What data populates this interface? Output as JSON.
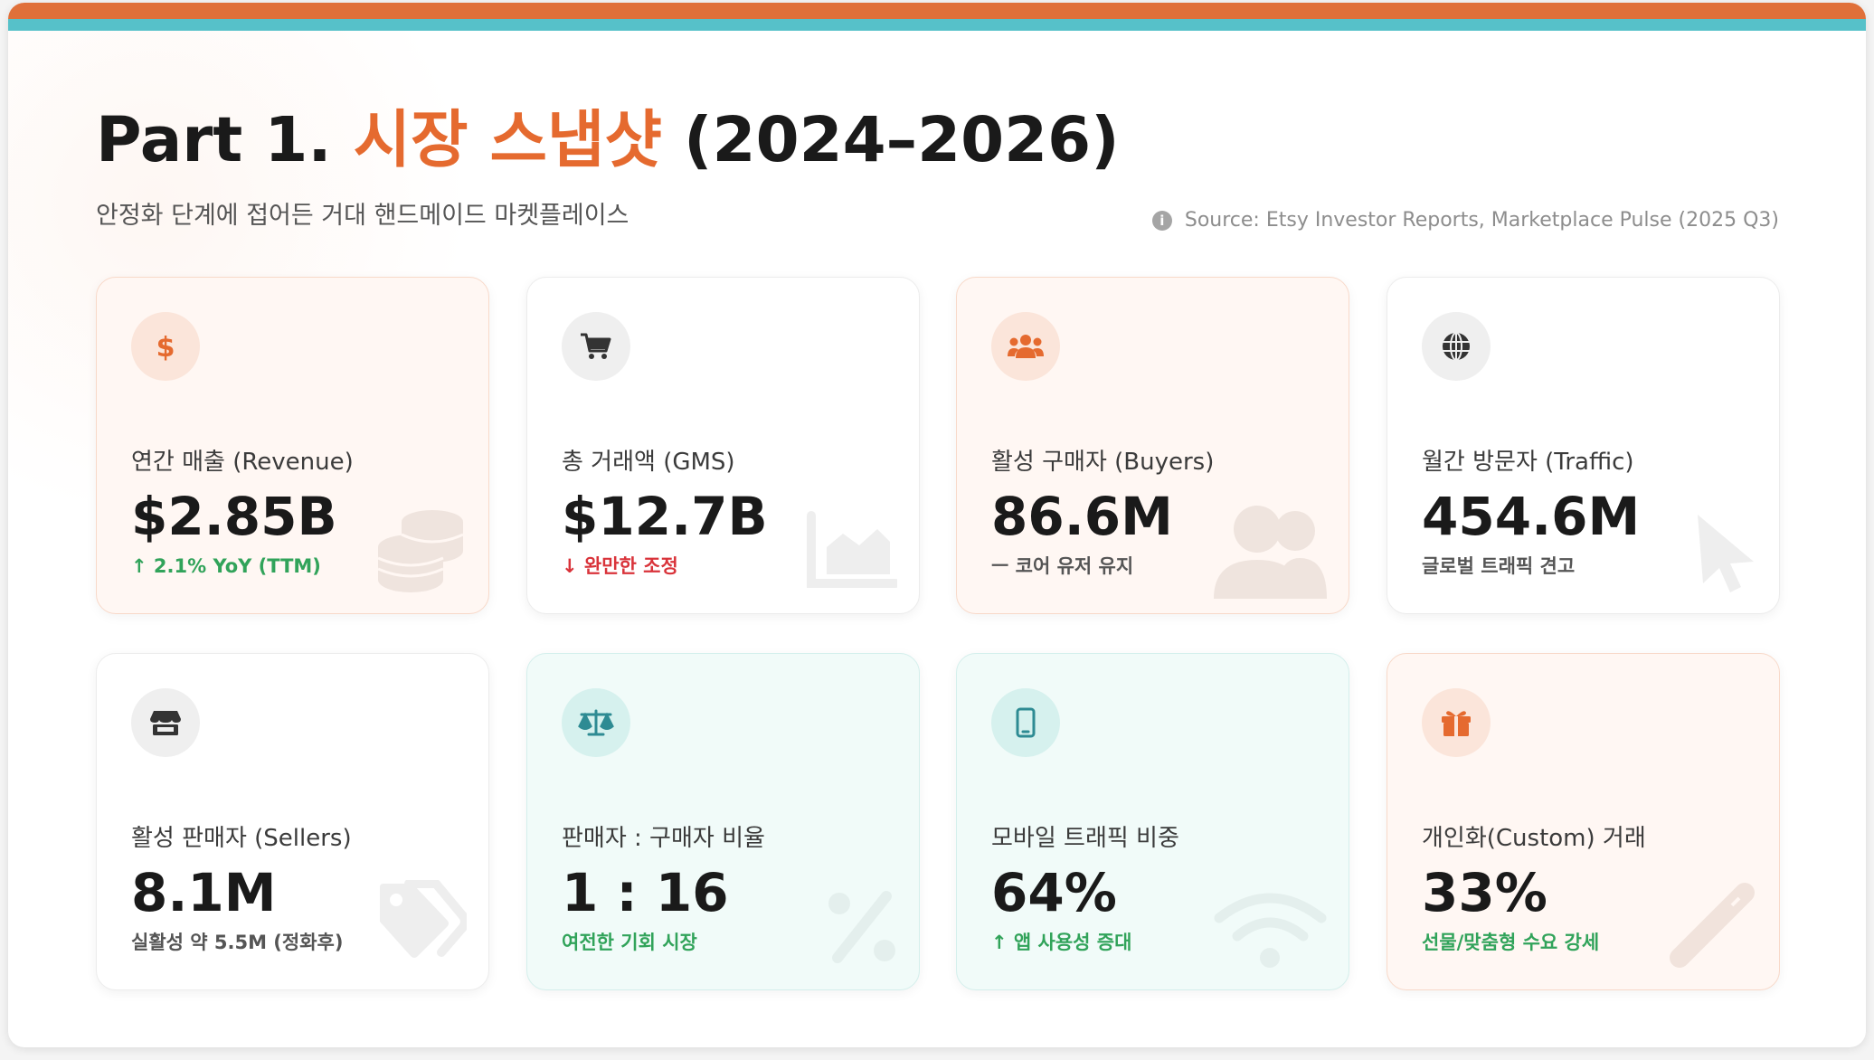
{
  "header": {
    "title_prefix": "Part 1. ",
    "title_accent": "시장 스냅샷",
    "title_suffix": " (2024–2026)",
    "subtitle": "안정화 단계에 접어든 거대 핸드메이드 마켓플레이스",
    "source_icon": "info-icon",
    "source": "Source: Etsy Investor Reports, Marketplace Pulse (2025 Q3)"
  },
  "colors": {
    "accent_orange": "#e56a2f",
    "accent_teal": "#56c1c9",
    "positive": "#31a35a",
    "negative": "#d9333a"
  },
  "cards": [
    {
      "icon": "dollar-icon",
      "watermark": "coins-icon",
      "label": "연간 매출 (Revenue)",
      "value": "$2.85B",
      "note": "↑ 2.1% YoY (TTM)",
      "note_color": "green"
    },
    {
      "icon": "cart-icon",
      "watermark": "area-chart-icon",
      "label": "총 거래액 (GMS)",
      "value": "$12.7B",
      "note": "↓ 완만한 조정",
      "note_color": "red"
    },
    {
      "icon": "users-icon",
      "watermark": "user-group-icon",
      "label": "활성 구매자 (Buyers)",
      "value": "86.6M",
      "note": "ㅡ 코어 유저 유지",
      "note_color": "gray"
    },
    {
      "icon": "globe-icon",
      "watermark": "cursor-icon",
      "label": "월간 방문자 (Traffic)",
      "value": "454.6M",
      "note": "글로벌 트래픽 견고",
      "note_color": "gray"
    },
    {
      "icon": "store-icon",
      "watermark": "tags-icon",
      "label": "활성 판매자 (Sellers)",
      "value": "8.1M",
      "note": "실활성 약 5.5M (정화후)",
      "note_color": "gray"
    },
    {
      "icon": "scale-icon",
      "watermark": "percent-icon",
      "label": "판매자 : 구매자 비율",
      "value": "1 : 16",
      "note": "여전한 기회 시장",
      "note_color": "green"
    },
    {
      "icon": "mobile-icon",
      "watermark": "wifi-icon",
      "label": "모바일 트래픽 비중",
      "value": "64%",
      "note": "↑ 앱 사용성 증대",
      "note_color": "green"
    },
    {
      "icon": "gift-icon",
      "watermark": "pen-icon",
      "label": "개인화(Custom) 거래",
      "value": "33%",
      "note": "선물/맞춤형 수요 강세",
      "note_color": "green"
    }
  ]
}
